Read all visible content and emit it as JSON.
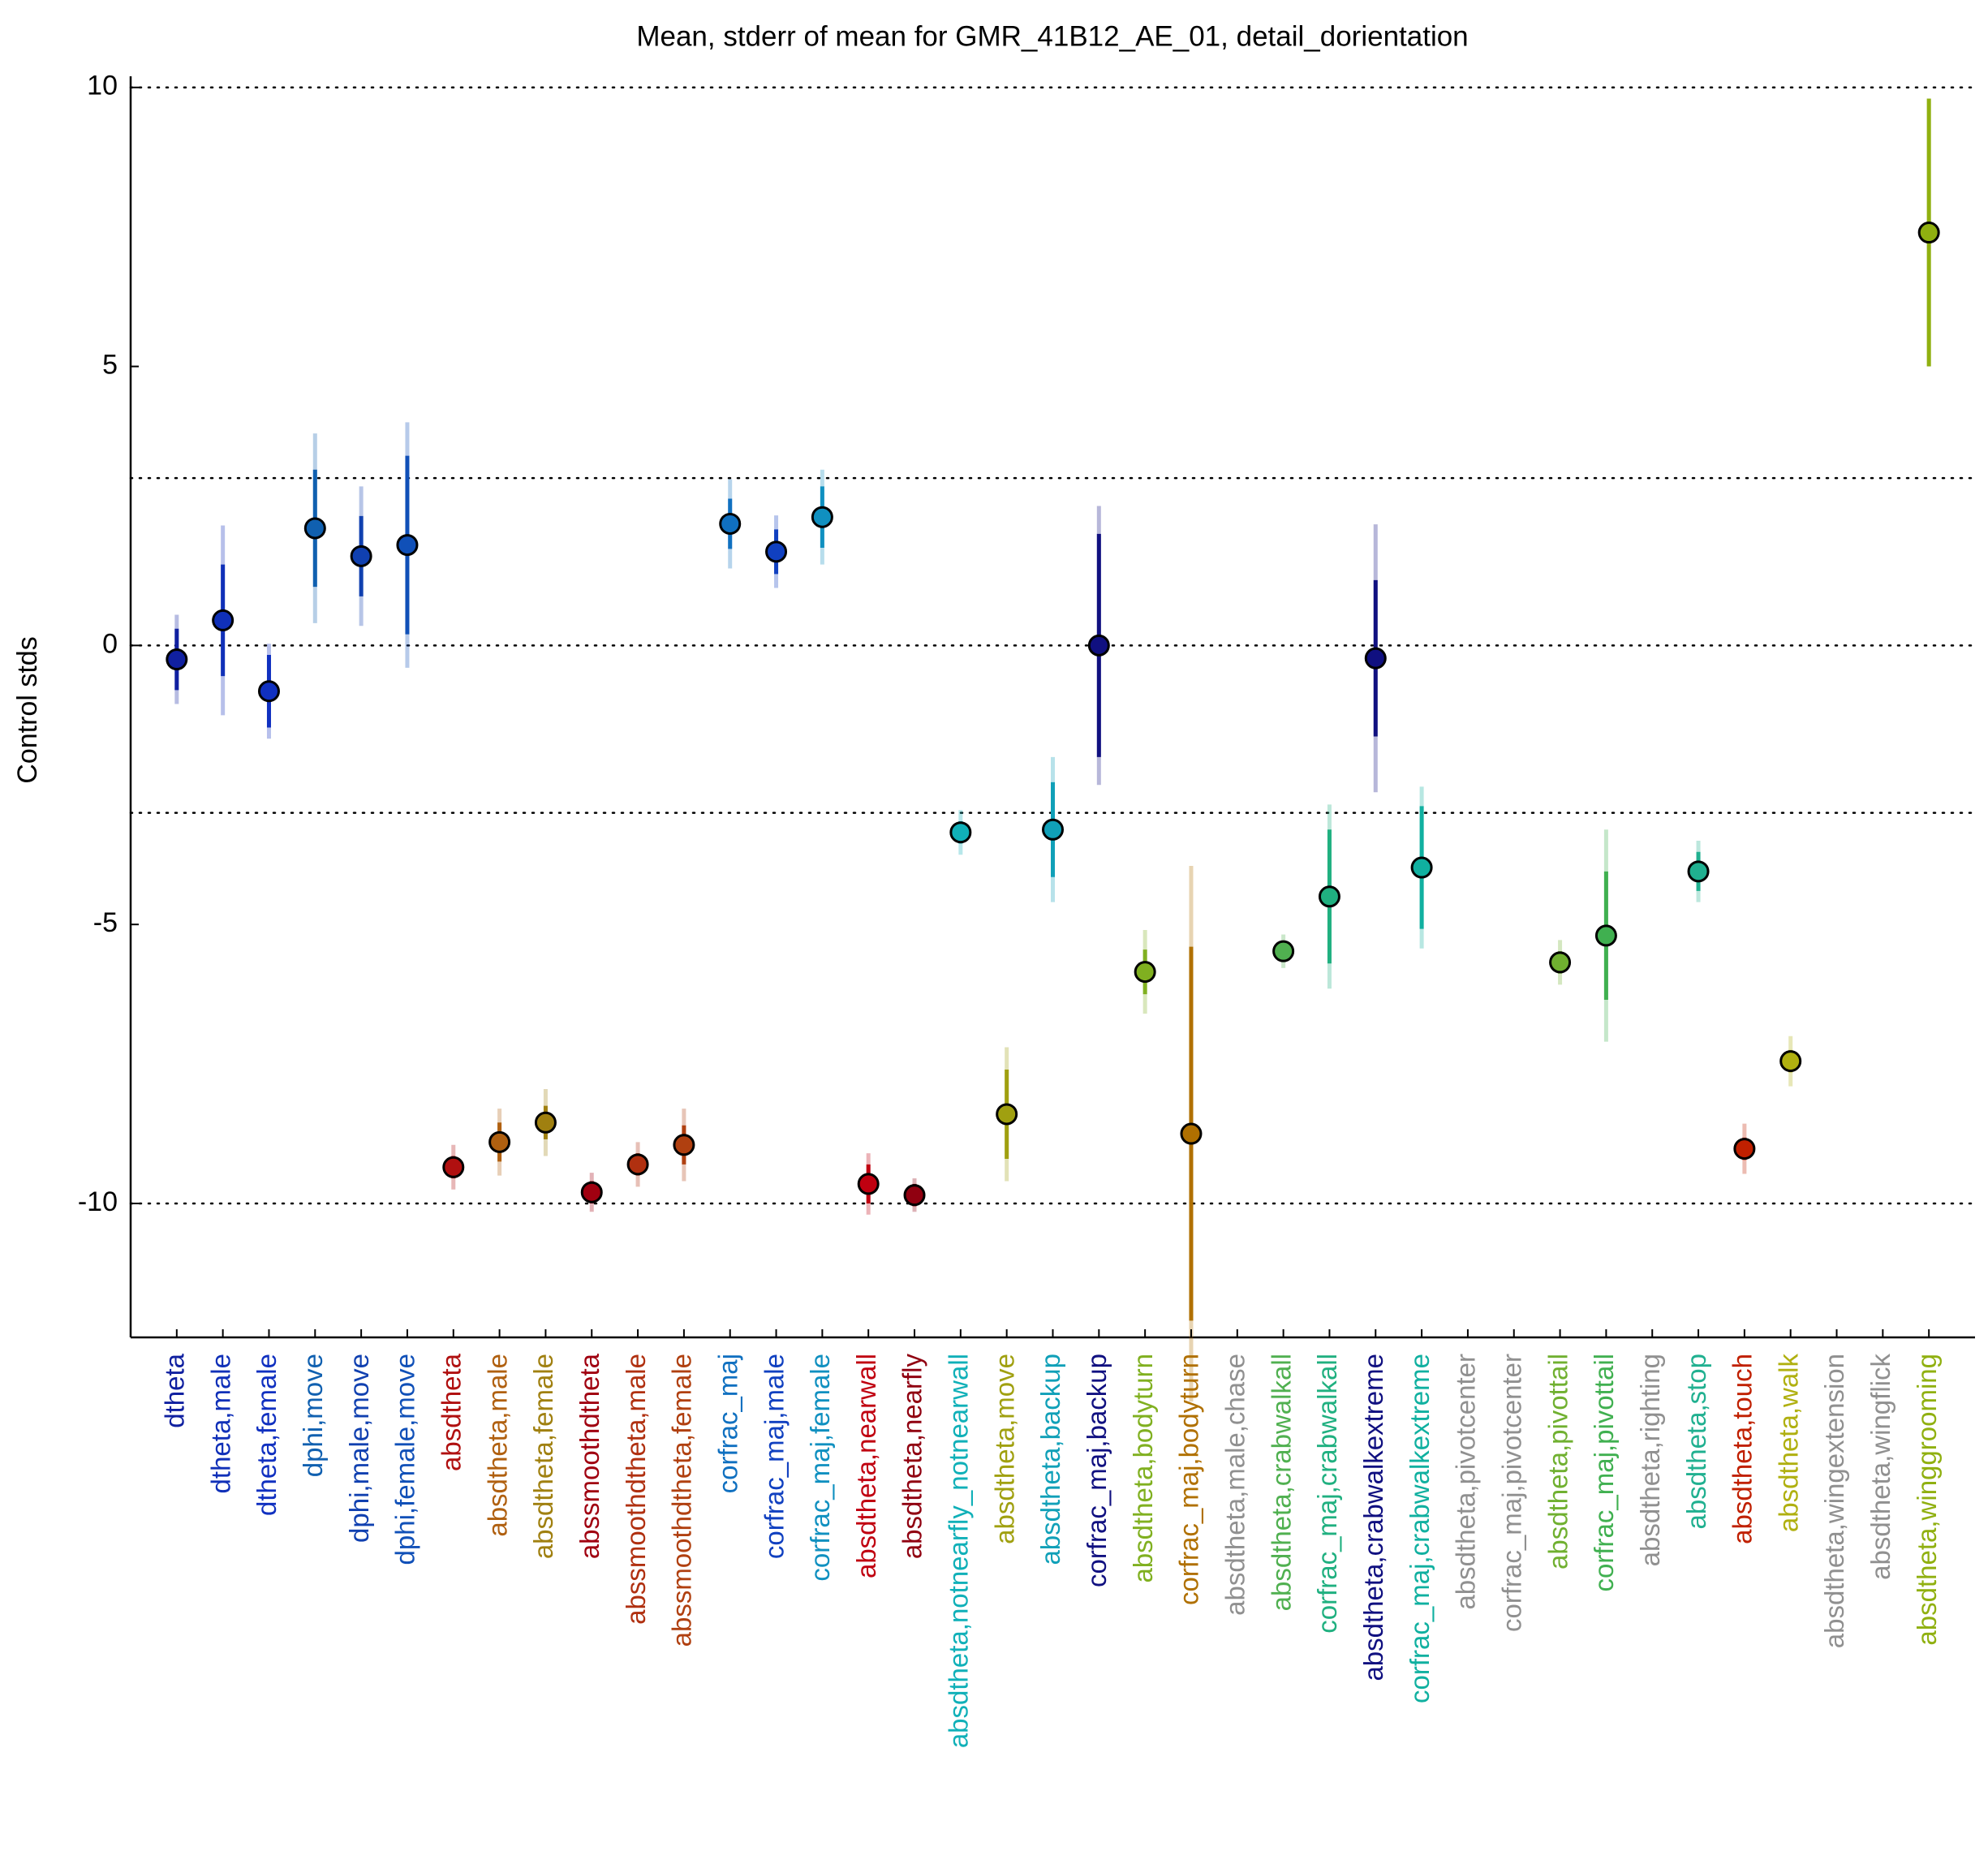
{
  "chart_data": {
    "type": "errorbar",
    "title": "Mean, stderr of mean for GMR_41B12_AE_01, detail_dorientation",
    "ylabel": "Control stds",
    "categories": [
      "dtheta",
      "dtheta,male",
      "dtheta,female",
      "dphi,move",
      "dphi,male,move",
      "dphi,female,move",
      "absdtheta",
      "absdtheta,male",
      "absdtheta,female",
      "abssmoothdtheta",
      "abssmoothdtheta,male",
      "abssmoothdtheta,female",
      "corfrac_maj",
      "corfrac_maj,male",
      "corfrac_maj,female",
      "absdtheta,nearwall",
      "absdtheta,nearfly",
      "absdtheta,notnearfly_notnearwall",
      "absdtheta,move",
      "absdtheta,backup",
      "corfrac_maj,backup",
      "absdtheta,bodyturn",
      "corfrac_maj,bodyturn",
      "absdtheta,male,chase",
      "absdtheta,crabwalkall",
      "corfrac_maj,crabwalkall",
      "absdtheta,crabwalkextreme",
      "corfrac_maj,crabwalkextreme",
      "absdtheta,pivotcenter",
      "corfrac_maj,pivotcenter",
      "absdtheta,pivottail",
      "corfrac_maj,pivottail",
      "absdtheta,righting",
      "absdtheta,stop",
      "absdtheta,touch",
      "absdtheta,walk",
      "absdtheta,wingextension",
      "absdtheta,wingflick",
      "absdtheta,winggrooming"
    ],
    "values": [
      -0.25,
      0.45,
      -0.82,
      2.1,
      1.6,
      1.8,
      -9.35,
      -8.9,
      -8.55,
      -9.8,
      -9.3,
      -8.95,
      2.18,
      1.68,
      2.3,
      -9.65,
      -9.85,
      -3.35,
      -8.4,
      -3.3,
      0.0,
      -5.85,
      -8.75,
      null,
      -5.48,
      -4.5,
      -0.23,
      -3.98,
      null,
      null,
      -5.68,
      -5.2,
      null,
      -4.05,
      -9.02,
      -7.45,
      null,
      null,
      7.4
    ],
    "errors": [
      0.55,
      1.0,
      0.65,
      1.05,
      0.72,
      1.6,
      0.2,
      0.35,
      0.3,
      0.2,
      0.2,
      0.35,
      0.45,
      0.4,
      0.55,
      0.35,
      0.2,
      0.2,
      0.8,
      0.85,
      2.0,
      0.4,
      3.35,
      null,
      0.15,
      1.2,
      1.4,
      1.1,
      null,
      null,
      0.2,
      1.15,
      null,
      0.35,
      0.2,
      0.2,
      null,
      null,
      2.4
    ],
    "outer_errors": [
      0.8,
      1.7,
      0.85,
      1.7,
      1.25,
      2.2,
      0.4,
      0.6,
      0.6,
      0.35,
      0.4,
      0.65,
      0.8,
      0.65,
      0.85,
      0.55,
      0.3,
      0.4,
      1.2,
      1.3,
      2.5,
      0.75,
      4.8,
      null,
      0.3,
      1.65,
      2.4,
      1.45,
      null,
      null,
      0.4,
      1.9,
      null,
      0.55,
      0.45,
      0.45,
      null,
      null,
      2.4
    ],
    "colors": [
      "#1020a0",
      "#1030b8",
      "#1030c0",
      "#1060b0",
      "#1040b0",
      "#1050b8",
      "#b01010",
      "#b06010",
      "#a08010",
      "#a00010",
      "#b03010",
      "#b04010",
      "#1070c0",
      "#1040c0",
      "#1090c0",
      "#c00010",
      "#900010",
      "#10b0b8",
      "#a0a010",
      "#10a0b8",
      "#101080",
      "#80b020",
      "#b07000",
      "#909090",
      "#50b050",
      "#20b080",
      "#101080",
      "#10b0a0",
      "#909090",
      "#909090",
      "#70b030",
      "#40b050",
      "#909090",
      "#20b090",
      "#c02000",
      "#b0b010",
      "#909090",
      "#909090",
      "#90b010"
    ],
    "ylim": [
      -12.4,
      10.2
    ],
    "yticks": [
      -10,
      -5,
      0,
      5,
      10
    ],
    "reference_lines": [
      10,
      3,
      0,
      -3,
      -10
    ]
  }
}
